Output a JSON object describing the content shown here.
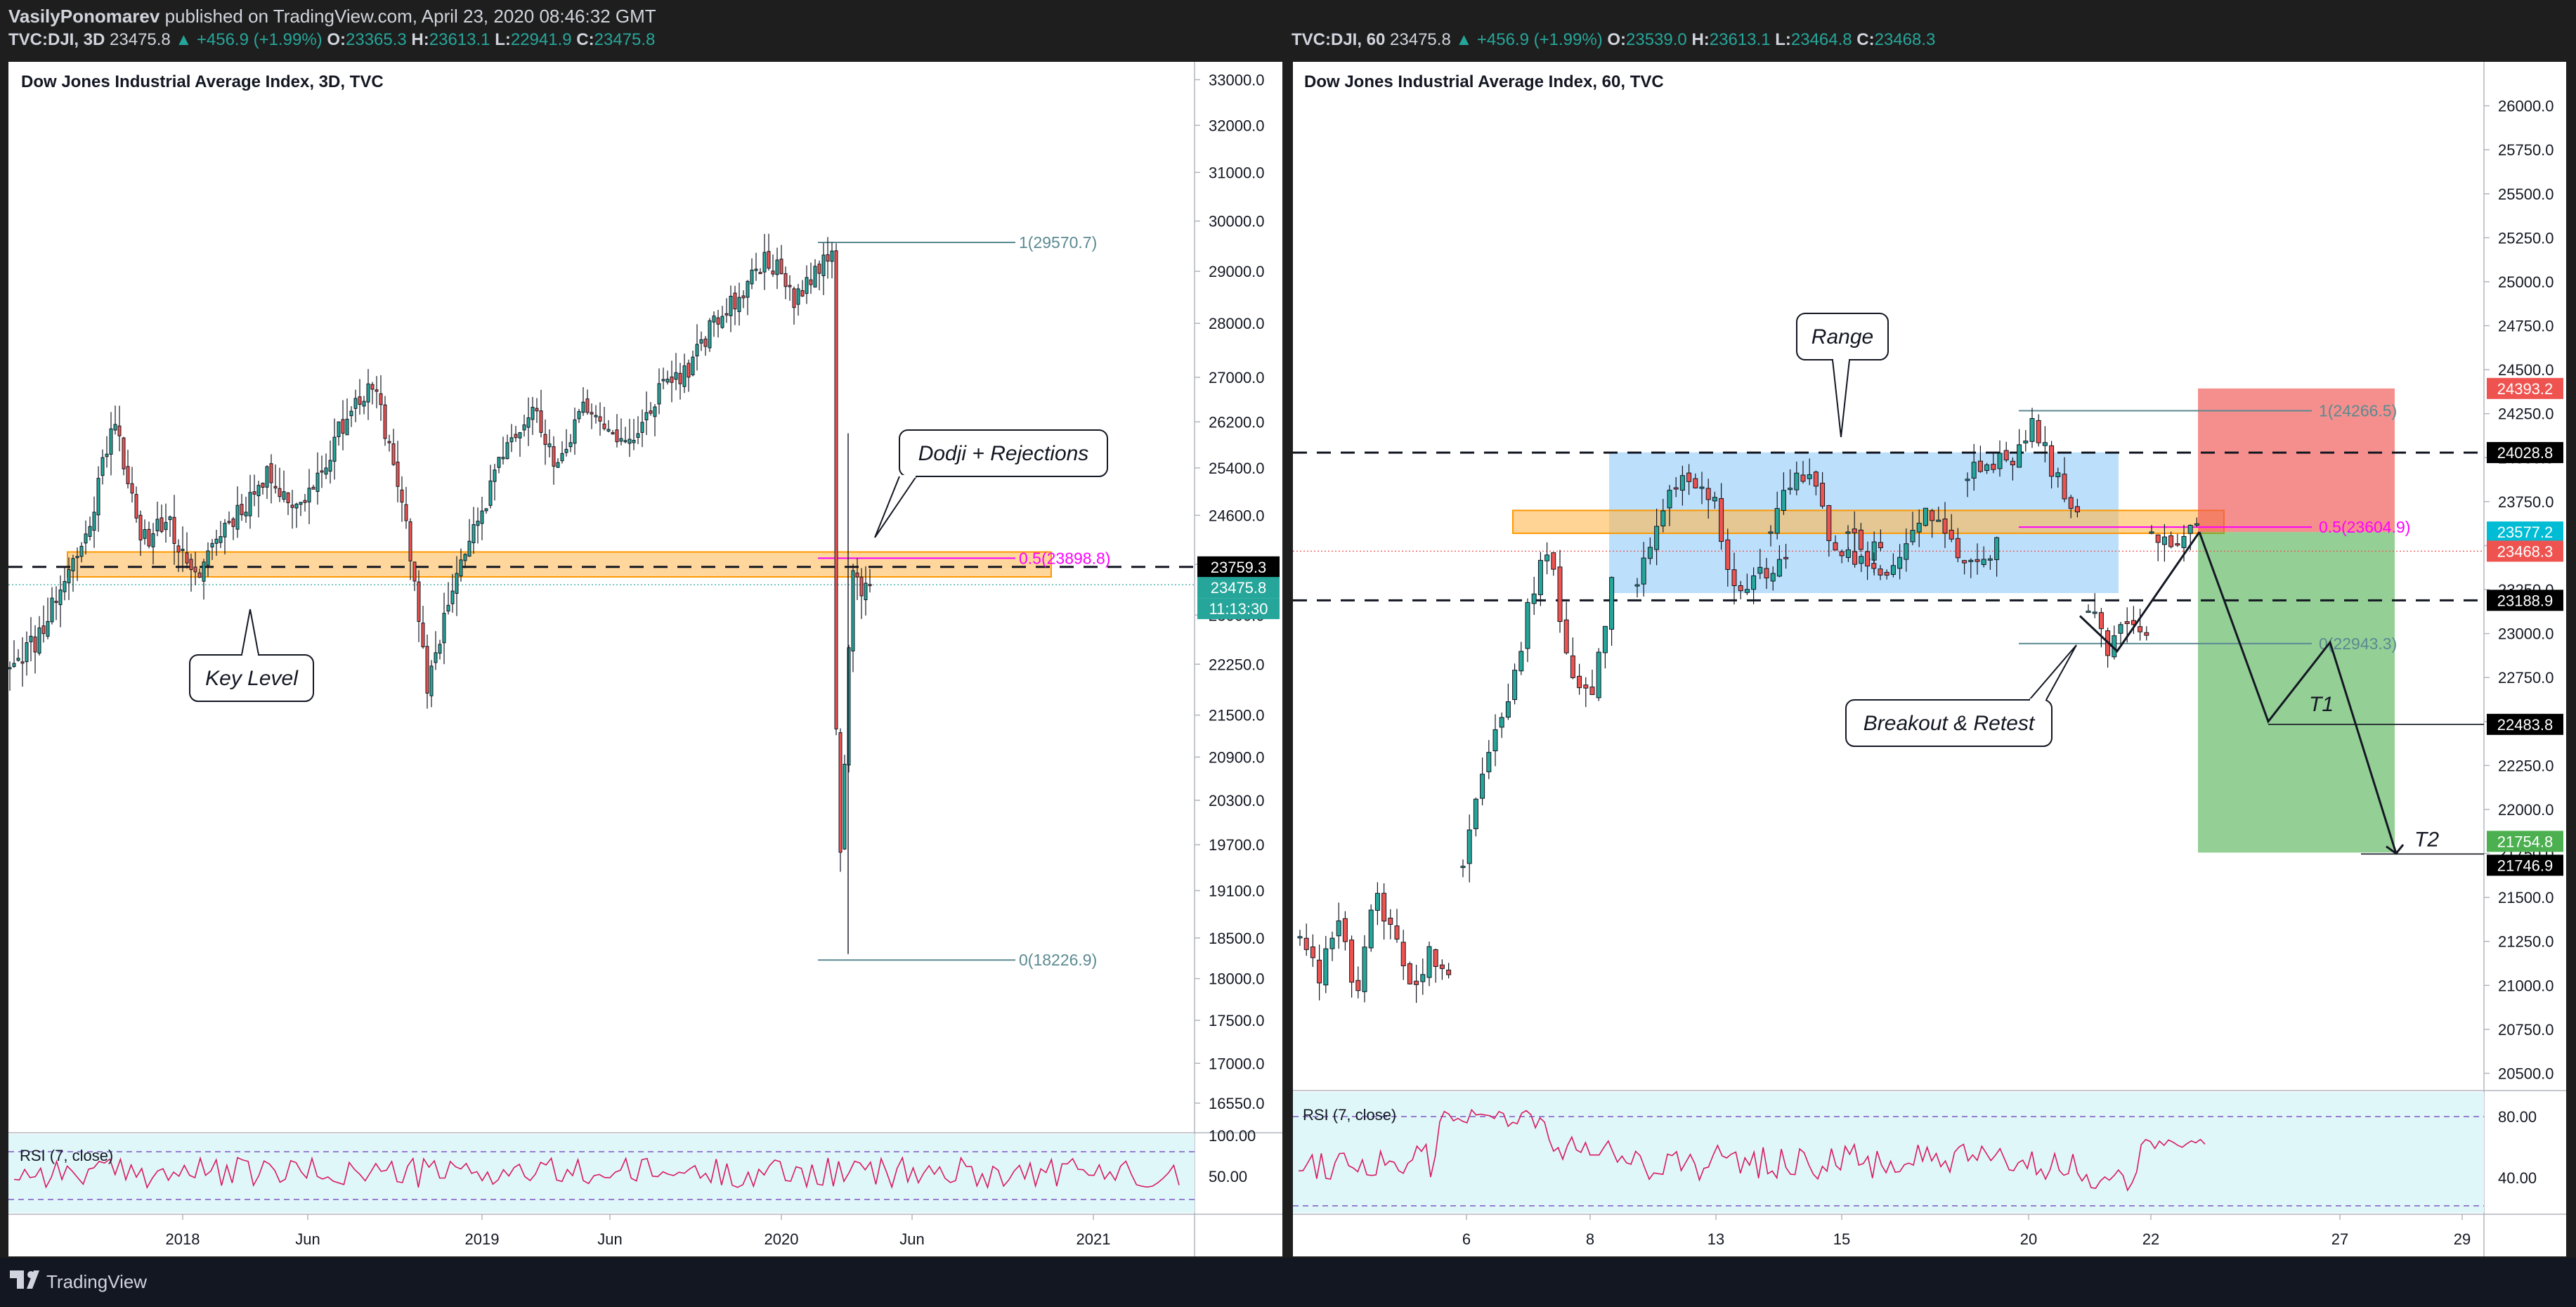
{
  "header": {
    "publisher": "VasilyPonomarev",
    "published_text": "published on TradingView.com, April 23, 2020 08:46:32 GMT"
  },
  "footer": {
    "brand": "TradingView"
  },
  "colors": {
    "background": "#1e1e1e",
    "chart_bg": "#ffffff",
    "up": "#26a69a",
    "down": "#ef5350",
    "fib": "#5b8a91",
    "fib_mid": "#ff00ff",
    "key_zone": "#ffb74d",
    "range_box": "#90caf9",
    "stop_zone": "#ef5350",
    "target_zone": "#4caf50",
    "rsi_bg": "#e0f7fa",
    "rsi_line": "#d81b60"
  },
  "panels": [
    {
      "id": "left",
      "symbol_bar": {
        "symbol": "TVC:DJI, 3D",
        "last": "23475.8",
        "change": "▲ +456.9 (+1.99%)",
        "ohlc": [
          {
            "k": "O:",
            "v": "23365.3"
          },
          {
            "k": "H:",
            "v": "23613.1"
          },
          {
            "k": "L:",
            "v": "22941.9"
          },
          {
            "k": "C:",
            "v": "23475.8"
          }
        ]
      },
      "legend": "Dow Jones Industrial Average Index, 3D, TVC",
      "rsi_label": "RSI (7, close)",
      "y_ticks": [
        "33000.0",
        "32000.0",
        "31000.0",
        "30000.0",
        "29000.0",
        "28000.0",
        "27000.0",
        "26200.0",
        "25400.0",
        "24600.0",
        "23800.0",
        "23000.0",
        "22250.0",
        "21500.0",
        "20900.0",
        "20300.0",
        "19700.0",
        "19100.0",
        "18500.0",
        "18000.0",
        "17500.0",
        "17000.0",
        "16550.0"
      ],
      "rsi_ticks": [
        "100.00",
        "50.00"
      ],
      "x_ticks": [
        "2018",
        "Jun",
        "2019",
        "Jun",
        "2020",
        "Jun",
        "2021"
      ],
      "price_tags": [
        {
          "text": "23759.3",
          "color": "#000000"
        },
        {
          "text": "23475.8",
          "color": "#26a69a"
        },
        {
          "text": "11:13:30",
          "color": "#26a69a"
        }
      ],
      "annotations": {
        "fib_top": "1(29570.7)",
        "fib_mid": "0.5(23898.8)",
        "fib_bottom": "0(18226.9)",
        "key_level": "Key Level",
        "dodji": "Dodji + Rejections"
      }
    },
    {
      "id": "right",
      "symbol_bar": {
        "symbol": "TVC:DJI, 60",
        "last": "23475.8",
        "change": "▲ +456.9 (+1.99%)",
        "ohlc": [
          {
            "k": "O:",
            "v": "23539.0"
          },
          {
            "k": "H:",
            "v": "23613.1"
          },
          {
            "k": "L:",
            "v": "23464.8"
          },
          {
            "k": "C:",
            "v": "23468.3"
          }
        ]
      },
      "legend": "Dow Jones Industrial Average Index, 60, TVC",
      "rsi_label": "RSI (7, close)",
      "y_ticks": [
        "26000.0",
        "25750.0",
        "25500.0",
        "25250.0",
        "25000.0",
        "24750.0",
        "24500.0",
        "24250.0",
        "24000.0",
        "23750.0",
        "23500.0",
        "23250.0",
        "23000.0",
        "22750.0",
        "22500.0",
        "22250.0",
        "22000.0",
        "21750.0",
        "21500.0",
        "21250.0",
        "21000.0",
        "20750.0",
        "20500.0"
      ],
      "rsi_ticks": [
        "80.00",
        "40.00"
      ],
      "x_ticks": [
        "6",
        "8",
        "13",
        "15",
        "20",
        "22",
        "27",
        "29"
      ],
      "price_tags": [
        {
          "text": "24393.2",
          "color": "#ef5350"
        },
        {
          "text": "24028.8",
          "color": "#000000"
        },
        {
          "text": "23577.2",
          "color": "#00bcd4"
        },
        {
          "text": "23468.3",
          "color": "#ef5350"
        },
        {
          "text": "23188.9",
          "color": "#000000"
        },
        {
          "text": "22483.8",
          "color": "#000000"
        },
        {
          "text": "21754.8",
          "color": "#4caf50"
        },
        {
          "text": "21746.9",
          "color": "#000000"
        }
      ],
      "annotations": {
        "fib_top": "1(24266.5)",
        "fib_mid": "0.5(23604.9)",
        "fib_bottom": "0(22943.3)",
        "range": "Range",
        "breakout": "Breakout & Retest",
        "t1": "T1",
        "t2": "T2"
      }
    }
  ],
  "chart_data": [
    {
      "type": "candlestick",
      "title": "Dow Jones Industrial Average Index, 3D, TVC",
      "x_ticks": [
        "2018",
        "Jun",
        "2019",
        "Jun",
        "2020",
        "Jun",
        "2021"
      ],
      "ylim": [
        16300,
        33400
      ],
      "scale": "log",
      "grid": false,
      "last_close": 23475.8,
      "fib_levels": [
        {
          "label": "1",
          "value": 29570.7
        },
        {
          "label": "0.5",
          "value": 23898.8
        },
        {
          "label": "0",
          "value": 18226.9
        }
      ],
      "levels": [
        {
          "name": "dashed",
          "value": 23759.3
        }
      ],
      "zones": [
        {
          "name": "key level",
          "from": 23600,
          "to": 24000
        }
      ],
      "path": [
        [
          "2017-09",
          22300
        ],
        [
          "2017-11",
          23500
        ],
        [
          "2018-01",
          26400
        ],
        [
          "2018-02",
          24100
        ],
        [
          "2018-03",
          24500
        ],
        [
          "2018-04",
          23500
        ],
        [
          "2018-05",
          24300
        ],
        [
          "2018-06",
          24800
        ],
        [
          "2018-07",
          25200
        ],
        [
          "2018-09",
          26400
        ],
        [
          "2018-10",
          26800
        ],
        [
          "2018-11",
          25000
        ],
        [
          "2018-12",
          21900
        ],
        [
          "2019-01",
          24500
        ],
        [
          "2019-03",
          25800
        ],
        [
          "2019-05",
          25300
        ],
        [
          "2019-06",
          26500
        ],
        [
          "2019-08",
          25800
        ],
        [
          "2019-10",
          27000
        ],
        [
          "2019-12",
          28400
        ],
        [
          "2020-02",
          29300
        ],
        [
          "2020-03",
          20500
        ],
        [
          "2020-04",
          23500
        ]
      ]
    },
    {
      "type": "candlestick",
      "title": "Dow Jones Industrial Average Index, 60, TVC",
      "x_ticks": [
        "6",
        "8",
        "13",
        "15",
        "20",
        "22",
        "27",
        "29"
      ],
      "ylim": [
        20450,
        26250
      ],
      "grid": false,
      "last_close": 23468.3,
      "fib_levels": [
        {
          "label": "1",
          "value": 24266.5
        },
        {
          "label": "0.5",
          "value": 23604.9
        },
        {
          "label": "0",
          "value": 22943.3
        }
      ],
      "levels": [
        {
          "name": "range top",
          "value": 24028.8
        },
        {
          "name": "range bottom",
          "value": 23188.9
        },
        {
          "name": "T1",
          "value": 22483.8
        },
        {
          "name": "T2",
          "value": 21746.9
        }
      ],
      "position": {
        "stop": 24393.2,
        "entry": 23577.2,
        "target": 21754.8
      },
      "path": [
        [
          "Apr 1",
          21200
        ],
        [
          "Apr 2",
          21000
        ],
        [
          "Apr 3",
          21050
        ],
        [
          "Apr 6",
          22600
        ],
        [
          "Apr 7",
          23200
        ],
        [
          "Apr 8",
          23400
        ],
        [
          "Apr 9",
          23700
        ],
        [
          "Apr 13",
          23400
        ],
        [
          "Apr 14",
          23900
        ],
        [
          "Apr 15",
          23500
        ],
        [
          "Apr 16",
          23500
        ],
        [
          "Apr 17",
          24000
        ],
        [
          "Apr 20",
          23700
        ],
        [
          "Apr 21",
          23000
        ],
        [
          "Apr 22",
          23400
        ],
        [
          "Apr 23",
          23475
        ]
      ],
      "projection": [
        [
          "Apr 23",
          23600
        ],
        [
          "Apr 24",
          22500
        ],
        [
          "Apr 27",
          22950
        ],
        [
          "Apr 28",
          21750
        ]
      ]
    }
  ]
}
